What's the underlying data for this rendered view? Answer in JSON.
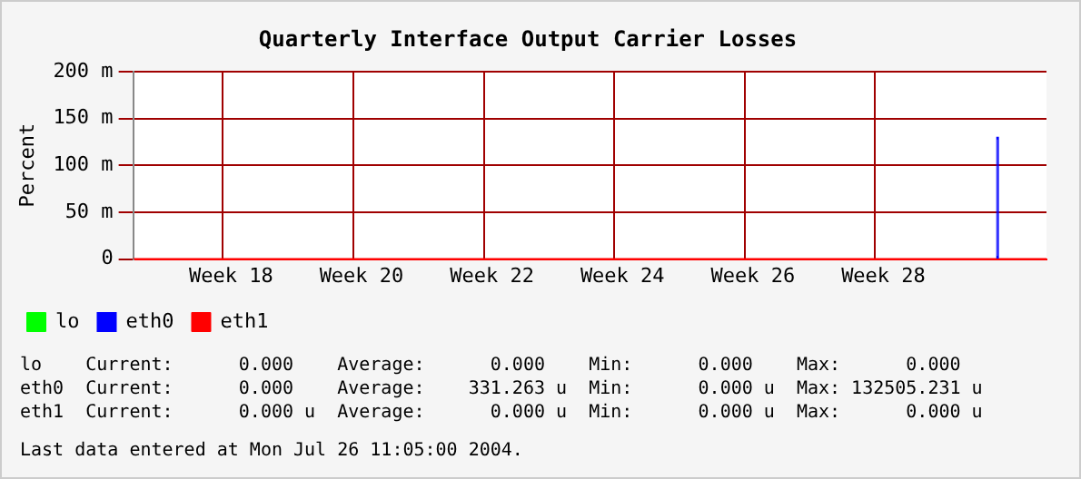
{
  "chart_data": {
    "type": "line",
    "title": "Quarterly Interface Output Carrier Losses",
    "ylabel": "Percent",
    "categories": [
      null,
      null,
      null,
      null,
      null,
      null,
      "Week 18",
      null,
      null,
      null,
      null,
      null,
      null,
      null,
      "Week 20",
      null,
      null,
      null,
      null,
      null,
      null,
      null,
      "Week 22",
      null,
      null,
      null,
      null,
      null,
      null,
      null,
      "Week 24",
      null,
      null,
      null,
      null,
      null,
      null,
      null,
      "Week 26",
      null,
      null,
      null,
      null,
      null,
      null,
      null,
      "Week 28",
      null,
      null,
      null,
      null,
      null,
      null,
      null,
      null,
      null,
      null
    ],
    "ylim": [
      0,
      200
    ],
    "yticks": [
      {
        "value": 0,
        "label": "0"
      },
      {
        "value": 50,
        "label": "50 m"
      },
      {
        "value": 100,
        "label": "100 m"
      },
      {
        "value": 150,
        "label": "150 m"
      },
      {
        "value": 200,
        "label": "200 m"
      }
    ],
    "grid": true,
    "legend": "bottom left",
    "marker": "none",
    "series": [
      {
        "name": "lo",
        "color": "#00ff00",
        "values": [
          null,
          null,
          null,
          null,
          null,
          null,
          null,
          null,
          null,
          null,
          null,
          null,
          null,
          null,
          null,
          null,
          null,
          null,
          null,
          null,
          null,
          null,
          null,
          null,
          null,
          null,
          null,
          null,
          null,
          null,
          null,
          null,
          null,
          null,
          null,
          null,
          null,
          null,
          null,
          null,
          null,
          null,
          null,
          null,
          null,
          null,
          null,
          null,
          null,
          null,
          null,
          null,
          null,
          null,
          null,
          null,
          null
        ]
      },
      {
        "name": "eth0",
        "type": "bar",
        "color": "#0000ff",
        "values": [
          null,
          null,
          null,
          null,
          null,
          null,
          null,
          null,
          null,
          null,
          null,
          null,
          null,
          null,
          null,
          null,
          null,
          null,
          null,
          null,
          null,
          null,
          null,
          null,
          null,
          null,
          null,
          null,
          null,
          null,
          null,
          null,
          null,
          null,
          null,
          null,
          null,
          null,
          null,
          null,
          null,
          null,
          null,
          null,
          null,
          null,
          null,
          null,
          null,
          null,
          null,
          null,
          null,
          130,
          null,
          null,
          null
        ]
      },
      {
        "name": "eth1",
        "color": "#ff0000",
        "values": [
          0,
          0,
          0,
          0,
          0,
          0,
          0,
          0,
          0,
          0,
          0,
          0,
          0,
          0,
          0,
          0,
          0,
          0,
          0,
          0,
          0,
          0,
          0,
          0,
          0,
          0,
          0,
          0,
          0,
          0,
          0,
          0,
          0,
          0,
          0,
          0,
          0,
          0,
          0,
          0,
          0,
          0,
          0,
          0,
          0,
          0,
          0,
          0,
          0,
          0,
          0,
          0,
          0,
          0,
          0,
          0,
          0
        ]
      }
    ],
    "annotations": [
      "lo    Current:      0.000    Average:      0.000    Min:      0.000    Max:      0.000",
      "eth0  Current:      0.000    Average:    331.263 u  Min:      0.000 u  Max: 132505.231 u",
      "eth1  Current:      0.000 u  Average:      0.000 u  Min:      0.000 u  Max:      0.000 u",
      "Last data entered at Mon Jul 26 11:05:00 2004."
    ]
  }
}
